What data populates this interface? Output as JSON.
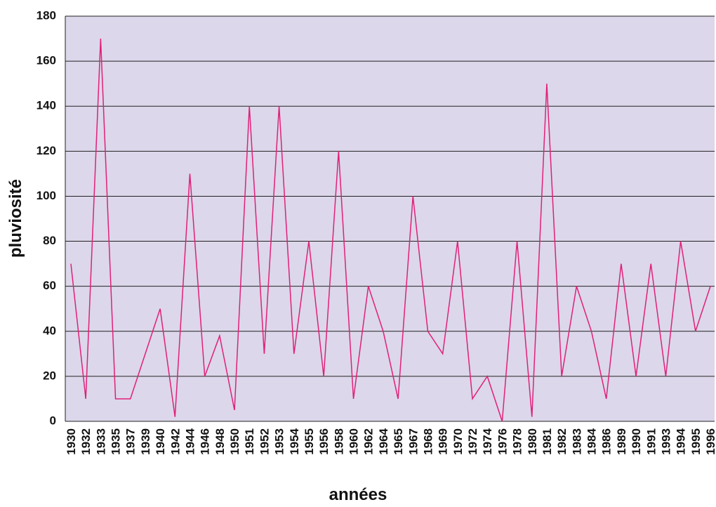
{
  "chart_data": {
    "type": "line",
    "x_label": "années",
    "y_label": "pluviosité",
    "categories": [
      "1930",
      "1932",
      "1933",
      "1935",
      "1937",
      "1939",
      "1940",
      "1942",
      "1944",
      "1946",
      "1948",
      "1950",
      "1951",
      "1952",
      "1953",
      "1954",
      "1955",
      "1956",
      "1958",
      "1960",
      "1962",
      "1964",
      "1965",
      "1967",
      "1968",
      "1969",
      "1970",
      "1972",
      "1974",
      "1976",
      "1978",
      "1980",
      "1981",
      "1982",
      "1983",
      "1984",
      "1986",
      "1989",
      "1990",
      "1991",
      "1993",
      "1994",
      "1995",
      "1996"
    ],
    "series": [
      {
        "name": "pluviosité",
        "color": "#e0207a",
        "values": [
          70,
          10,
          170,
          10,
          10,
          30,
          50,
          2,
          110,
          20,
          38,
          5,
          140,
          30,
          140,
          30,
          80,
          20,
          120,
          10,
          60,
          40,
          10,
          100,
          40,
          30,
          80,
          10,
          20,
          0,
          80,
          2,
          150,
          20,
          60,
          40,
          10,
          70,
          20,
          70,
          20,
          80,
          40,
          60
        ]
      }
    ],
    "ylim": [
      0,
      180
    ],
    "yticks": [
      0,
      20,
      40,
      60,
      80,
      100,
      120,
      140,
      160,
      180
    ],
    "grid": true
  }
}
